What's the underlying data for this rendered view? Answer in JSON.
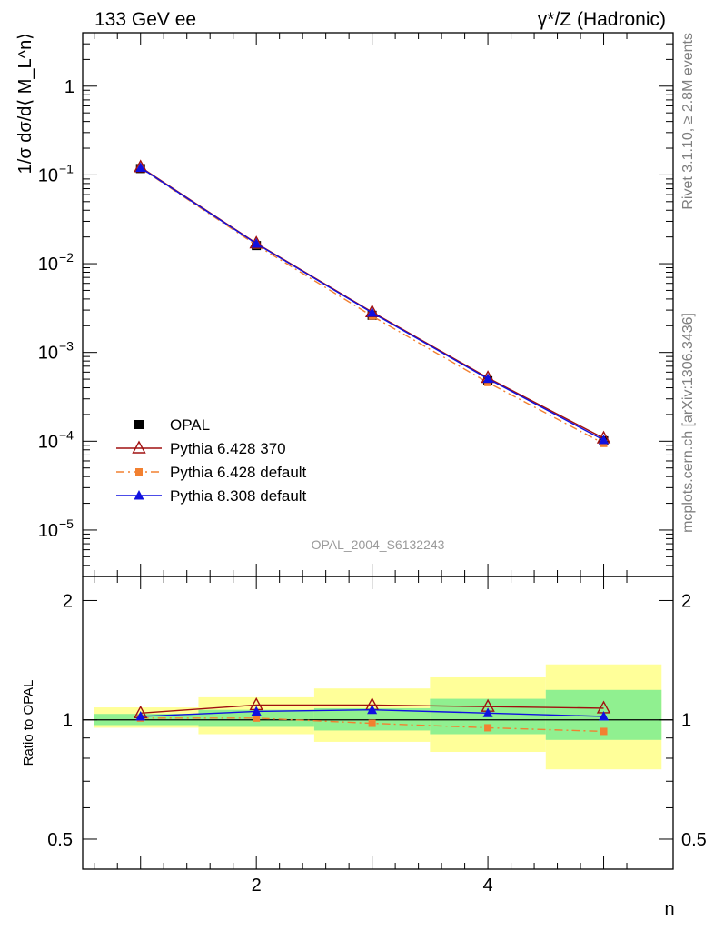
{
  "header": {
    "left": "133 GeV ee",
    "right": "γ*/Z (Hadronic)"
  },
  "side_labels": {
    "top": "Rivet 3.1.10, ≥ 2.8M events",
    "bottom": "mcplots.cern.ch [arXiv:1306.3436]"
  },
  "watermark": "OPAL_2004_S6132243",
  "chart_data": [
    {
      "type": "line",
      "ylabel": "1/σ dσ/d⟨ M_L^n⟩",
      "yscale": "log",
      "ylim": [
        3e-06,
        4
      ],
      "xlim": [
        0.5,
        5.6
      ],
      "yticks": [
        {
          "value": 1e-05,
          "base": "10",
          "exp": "−5"
        },
        {
          "value": 0.0001,
          "base": "10",
          "exp": "−4"
        },
        {
          "value": 0.001,
          "base": "10",
          "exp": "−3"
        },
        {
          "value": 0.01,
          "base": "10",
          "exp": "−2"
        },
        {
          "value": 0.1,
          "base": "10",
          "exp": "−1"
        },
        {
          "value": 1,
          "base": "1",
          "exp": ""
        }
      ],
      "x": [
        1,
        2,
        3,
        4,
        5
      ],
      "series": [
        {
          "name": "OPAL",
          "marker": "square",
          "color": "#000000",
          "values": [
            0.118,
            0.016,
            0.00262,
            0.00048,
            0.000101
          ]
        },
        {
          "name": "Pythia 6.428 370",
          "marker": "triangle-open",
          "color": "#a01010",
          "values": [
            0.1225,
            0.017,
            0.00285,
            0.000518,
            0.000108
          ]
        },
        {
          "name": "Pythia 6.428 default",
          "marker": "square-small",
          "color": "#f28030",
          "dash": "dashdot",
          "values": [
            0.1195,
            0.0162,
            0.00257,
            0.000458,
            9.43e-05
          ]
        },
        {
          "name": "Pythia 8.308 default",
          "marker": "triangle-filled",
          "color": "#1010e0",
          "values": [
            0.1205,
            0.0168,
            0.0028,
            0.000505,
            0.000103
          ]
        }
      ],
      "legend": "lower-left"
    },
    {
      "type": "line",
      "ylabel": "Ratio to OPAL",
      "xlabel": "n",
      "yscale": "log",
      "ylim": [
        0.42,
        2.3
      ],
      "xlim": [
        0.5,
        5.6
      ],
      "yticks": [
        0.5,
        1,
        2
      ],
      "xticks": [
        2,
        4
      ],
      "bands": [
        {
          "xmin": 0.6,
          "xmax": 1.5,
          "inner": [
            0.97,
            1.035
          ],
          "outer": [
            0.955,
            1.075
          ]
        },
        {
          "xmin": 1.5,
          "xmax": 2.5,
          "inner": [
            0.96,
            1.06
          ],
          "outer": [
            0.92,
            1.14
          ]
        },
        {
          "xmin": 2.5,
          "xmax": 3.5,
          "inner": [
            0.94,
            1.07
          ],
          "outer": [
            0.88,
            1.2
          ]
        },
        {
          "xmin": 3.5,
          "xmax": 4.5,
          "inner": [
            0.92,
            1.13
          ],
          "outer": [
            0.83,
            1.28
          ]
        },
        {
          "xmin": 4.5,
          "xmax": 5.5,
          "inner": [
            0.89,
            1.19
          ],
          "outer": [
            0.75,
            1.38
          ]
        }
      ],
      "inner_band_color": "#90f090",
      "outer_band_color": "#ffff99",
      "series": [
        {
          "name": "Pythia 6.428 370",
          "color": "#a01010",
          "values": [
            1.04,
            1.09,
            1.09,
            1.08,
            1.07
          ]
        },
        {
          "name": "Pythia 6.428 default",
          "color": "#f28030",
          "values": [
            1.01,
            1.01,
            0.98,
            0.955,
            0.935
          ]
        },
        {
          "name": "Pythia 8.308 default",
          "color": "#1010e0",
          "values": [
            1.02,
            1.05,
            1.06,
            1.04,
            1.02
          ]
        }
      ]
    }
  ]
}
